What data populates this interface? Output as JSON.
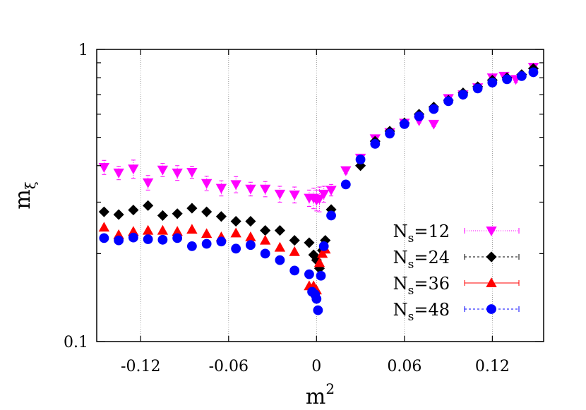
{
  "chart_data": {
    "type": "scatter",
    "title": "",
    "xlabel": "m",
    "xlabel_superscript": "2",
    "ylabel": "m",
    "ylabel_subscript": "ξ",
    "xlim": [
      -0.15,
      0.155
    ],
    "ylim": [
      0.1,
      1
    ],
    "y_scale": "log",
    "x_ticks": [
      -0.12,
      -0.06,
      0,
      0.06,
      0.12
    ],
    "x_tick_labels": [
      "-0.12",
      "-0.06",
      "0",
      "0.06",
      "0.12"
    ],
    "y_tick_labels": [
      {
        "value": 1,
        "label": "1"
      },
      {
        "value": 0.1,
        "label": "0.1"
      }
    ],
    "grid": "vertical dotted lines at x ticks",
    "legend_position": "bottom-right",
    "series": [
      {
        "name": "N",
        "name_subscript": "s",
        "name_suffix": "=12",
        "color": "#ff00ff",
        "marker": "triangle-down",
        "line": "dotted",
        "points": [
          {
            "x": -0.145,
            "y": 0.395,
            "err": 0.022
          },
          {
            "x": -0.135,
            "y": 0.378,
            "err": 0.02
          },
          {
            "x": -0.125,
            "y": 0.39,
            "err": 0.028
          },
          {
            "x": -0.115,
            "y": 0.35,
            "err": 0.02
          },
          {
            "x": -0.105,
            "y": 0.387,
            "err": 0.02
          },
          {
            "x": -0.095,
            "y": 0.378,
            "err": 0.022
          },
          {
            "x": -0.085,
            "y": 0.38,
            "err": 0.018
          },
          {
            "x": -0.075,
            "y": 0.348,
            "err": 0.02
          },
          {
            "x": -0.065,
            "y": 0.335,
            "err": 0.02
          },
          {
            "x": -0.055,
            "y": 0.345,
            "err": 0.022
          },
          {
            "x": -0.045,
            "y": 0.333,
            "err": 0.018
          },
          {
            "x": -0.035,
            "y": 0.333,
            "err": 0.02
          },
          {
            "x": -0.025,
            "y": 0.32,
            "err": 0.02
          },
          {
            "x": -0.015,
            "y": 0.318,
            "err": 0.02
          },
          {
            "x": -0.005,
            "y": 0.31,
            "err": 0.02
          },
          {
            "x": -0.002,
            "y": 0.31,
            "err": 0.025
          },
          {
            "x": 0,
            "y": 0.305,
            "err": 0.025
          },
          {
            "x": 0.002,
            "y": 0.308,
            "err": 0.03
          },
          {
            "x": 0.005,
            "y": 0.32,
            "err": 0.02
          },
          {
            "x": 0.01,
            "y": 0.33,
            "err": 0.015
          },
          {
            "x": 0.02,
            "y": 0.385,
            "err": 0.01
          },
          {
            "x": 0.03,
            "y": 0.425,
            "err": 0.01
          },
          {
            "x": 0.04,
            "y": 0.495,
            "err": 0.01
          },
          {
            "x": 0.05,
            "y": 0.52,
            "err": 0.01
          },
          {
            "x": 0.06,
            "y": 0.56,
            "err": 0.01
          },
          {
            "x": 0.07,
            "y": 0.57,
            "err": 0.01
          },
          {
            "x": 0.08,
            "y": 0.555,
            "err": 0.01
          },
          {
            "x": 0.09,
            "y": 0.68,
            "err": 0.01
          },
          {
            "x": 0.1,
            "y": 0.7,
            "err": 0.01
          },
          {
            "x": 0.11,
            "y": 0.74,
            "err": 0.015
          },
          {
            "x": 0.12,
            "y": 0.8,
            "err": 0.02
          },
          {
            "x": 0.128,
            "y": 0.81,
            "err": 0.02
          },
          {
            "x": 0.136,
            "y": 0.79,
            "err": 0.02
          },
          {
            "x": 0.148,
            "y": 0.87,
            "err": 0.01
          }
        ]
      },
      {
        "name": "N",
        "name_subscript": "s",
        "name_suffix": "=24",
        "color": "#000000",
        "marker": "diamond",
        "line": "dashed",
        "points": [
          {
            "x": -0.145,
            "y": 0.278
          },
          {
            "x": -0.135,
            "y": 0.272
          },
          {
            "x": -0.125,
            "y": 0.282
          },
          {
            "x": -0.115,
            "y": 0.292
          },
          {
            "x": -0.105,
            "y": 0.27
          },
          {
            "x": -0.095,
            "y": 0.274
          },
          {
            "x": -0.085,
            "y": 0.286
          },
          {
            "x": -0.075,
            "y": 0.278
          },
          {
            "x": -0.065,
            "y": 0.268
          },
          {
            "x": -0.055,
            "y": 0.258
          },
          {
            "x": -0.045,
            "y": 0.258
          },
          {
            "x": -0.035,
            "y": 0.24
          },
          {
            "x": -0.025,
            "y": 0.24
          },
          {
            "x": -0.015,
            "y": 0.222
          },
          {
            "x": -0.005,
            "y": 0.218
          },
          {
            "x": -0.002,
            "y": 0.198
          },
          {
            "x": 0,
            "y": 0.19
          },
          {
            "x": 0.002,
            "y": 0.178
          },
          {
            "x": 0.004,
            "y": 0.205
          },
          {
            "x": 0.006,
            "y": 0.222
          },
          {
            "x": 0.01,
            "y": 0.283
          },
          {
            "x": 0.03,
            "y": 0.4
          },
          {
            "x": 0.04,
            "y": 0.485
          },
          {
            "x": 0.05,
            "y": 0.525
          },
          {
            "x": 0.06,
            "y": 0.56
          },
          {
            "x": 0.07,
            "y": 0.6
          },
          {
            "x": 0.08,
            "y": 0.635
          },
          {
            "x": 0.09,
            "y": 0.67
          },
          {
            "x": 0.1,
            "y": 0.71
          },
          {
            "x": 0.11,
            "y": 0.745
          },
          {
            "x": 0.12,
            "y": 0.785
          },
          {
            "x": 0.13,
            "y": 0.8
          },
          {
            "x": 0.14,
            "y": 0.82
          },
          {
            "x": 0.148,
            "y": 0.86
          }
        ]
      },
      {
        "name": "N",
        "name_subscript": "s",
        "name_suffix": "=36",
        "color": "#ff0000",
        "marker": "triangle-up",
        "line": "solid",
        "points": [
          {
            "x": -0.145,
            "y": 0.246
          },
          {
            "x": -0.135,
            "y": 0.232
          },
          {
            "x": -0.125,
            "y": 0.238
          },
          {
            "x": -0.115,
            "y": 0.24
          },
          {
            "x": -0.105,
            "y": 0.24
          },
          {
            "x": -0.095,
            "y": 0.238
          },
          {
            "x": -0.085,
            "y": 0.242
          },
          {
            "x": -0.075,
            "y": 0.234
          },
          {
            "x": -0.065,
            "y": 0.228
          },
          {
            "x": -0.055,
            "y": 0.235
          },
          {
            "x": -0.045,
            "y": 0.228
          },
          {
            "x": -0.035,
            "y": 0.222
          },
          {
            "x": -0.025,
            "y": 0.21
          },
          {
            "x": -0.015,
            "y": 0.203
          },
          {
            "x": -0.005,
            "y": 0.155
          },
          {
            "x": -0.002,
            "y": 0.155
          },
          {
            "x": 0,
            "y": 0.15
          },
          {
            "x": 0.002,
            "y": 0.186
          },
          {
            "x": 0.004,
            "y": 0.2
          },
          {
            "x": 0.006,
            "y": 0.207
          }
        ]
      },
      {
        "name": "N",
        "name_subscript": "s",
        "name_suffix": "=48",
        "color": "#0000ff",
        "marker": "circle",
        "line": "dashed",
        "points": [
          {
            "x": -0.145,
            "y": 0.226
          },
          {
            "x": -0.135,
            "y": 0.222
          },
          {
            "x": -0.125,
            "y": 0.227
          },
          {
            "x": -0.115,
            "y": 0.224
          },
          {
            "x": -0.105,
            "y": 0.223
          },
          {
            "x": -0.095,
            "y": 0.226
          },
          {
            "x": -0.085,
            "y": 0.212
          },
          {
            "x": -0.075,
            "y": 0.216
          },
          {
            "x": -0.065,
            "y": 0.22
          },
          {
            "x": -0.055,
            "y": 0.208
          },
          {
            "x": -0.045,
            "y": 0.214
          },
          {
            "x": -0.035,
            "y": 0.2
          },
          {
            "x": -0.025,
            "y": 0.19
          },
          {
            "x": -0.015,
            "y": 0.175
          },
          {
            "x": -0.005,
            "y": 0.17
          },
          {
            "x": -0.003,
            "y": 0.148
          },
          {
            "x": -0.001,
            "y": 0.145
          },
          {
            "x": 0,
            "y": 0.14
          },
          {
            "x": 0.001,
            "y": 0.128
          },
          {
            "x": 0.003,
            "y": 0.168
          },
          {
            "x": 0.005,
            "y": 0.212
          },
          {
            "x": 0.01,
            "y": 0.27
          },
          {
            "x": 0.02,
            "y": 0.345
          },
          {
            "x": 0.03,
            "y": 0.42
          },
          {
            "x": 0.04,
            "y": 0.475
          },
          {
            "x": 0.05,
            "y": 0.515
          },
          {
            "x": 0.06,
            "y": 0.555
          },
          {
            "x": 0.07,
            "y": 0.59
          },
          {
            "x": 0.08,
            "y": 0.625
          },
          {
            "x": 0.09,
            "y": 0.665
          },
          {
            "x": 0.1,
            "y": 0.7
          },
          {
            "x": 0.11,
            "y": 0.735
          },
          {
            "x": 0.12,
            "y": 0.77
          },
          {
            "x": 0.13,
            "y": 0.79
          },
          {
            "x": 0.14,
            "y": 0.81
          },
          {
            "x": 0.148,
            "y": 0.835
          }
        ]
      }
    ]
  }
}
